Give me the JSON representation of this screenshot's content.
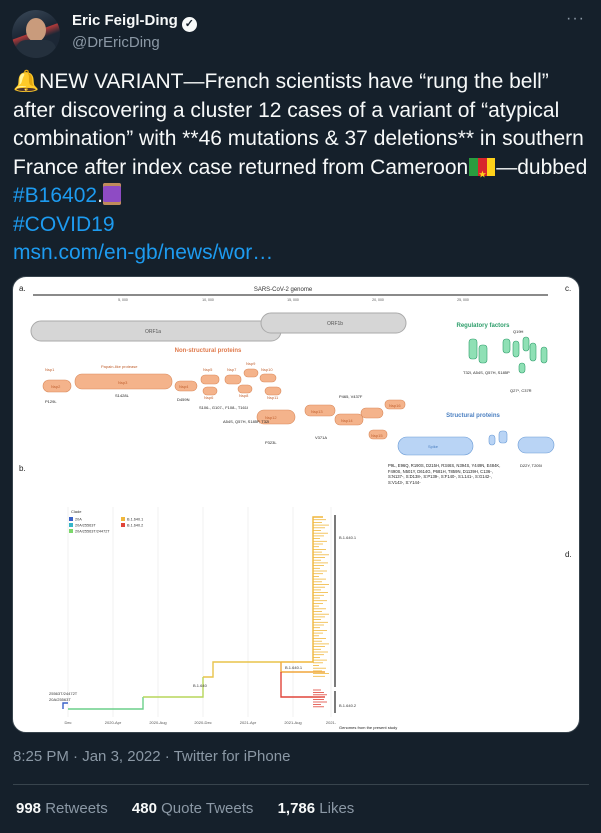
{
  "author": {
    "name": "Eric Feigl-Ding",
    "handle": "@DrEricDing"
  },
  "tweet": {
    "bell": "🔔",
    "text_1": "NEW VARIANT—French scientists have “rung the bell” after discovering a cluster 12 cases of a variant of “atypical combination” with **46 mutations & 37 deletions** in southern France after index case returned from Cameroon",
    "text_2": "—dubbed ",
    "hashtag_1": "#B16402",
    "text_3": ".",
    "hashtag_2": "#COVID19",
    "link": "msn.com/en-gb/news/wor…"
  },
  "figure": {
    "panel_a": "a.",
    "panel_b": "b.",
    "panel_c": "c.",
    "panel_d": "d.",
    "genome_title": "SARS-CoV-2 genome",
    "scale": [
      "5, 000",
      "10, 000",
      "15, 000",
      "20, 000",
      "25, 000"
    ],
    "orf1a": "ORF1a",
    "orf1b": "ORF1b",
    "nsp_heading": "Non-structural proteins",
    "reg_heading": "Regulatory factors",
    "struct_heading": "Structural proteins",
    "nsp_labels": [
      "Nsp1",
      "Papain-like protease",
      "Nsp2",
      "Nsp3",
      "Nsp4",
      "Nsp5",
      "Nsp6",
      "Nsp7",
      "Nsp8",
      "Nsp9",
      "Nsp10",
      "Nsp11",
      "Nsp12",
      "Nsp13",
      "Nsp14",
      "Nsp15",
      "Nsp16"
    ],
    "nsp_mut": [
      "P129L",
      "S1428L",
      "D459N",
      "S106-, G107-, F108-, T161I",
      "A54S, Q57H, S185P, T32I",
      "P323L",
      "V371A",
      "P465, V437F"
    ],
    "reg_mut": [
      "Q19H",
      "T32I, A54S, Q57H, S185P",
      "Q27*, C37R"
    ],
    "spike": "Spike",
    "spike_mut": "P9L, E96Q, R190S, D215H, R346S, N394S, Y449N, E484K, F490S, N501Y, D614G, P681H, T859N, D1139H, C136-, S:N137-, S:D138-, S:P139-, S:F140-, S:L141-, S:G142-, S:V143-, S:Y144-",
    "n_mut": "D22Y, T205I",
    "legend_title": "Clade",
    "legend": [
      "20A",
      "20A/25563T",
      "20A/25563T/24472T",
      "B.1.640.1",
      "B.1.640.2"
    ],
    "clade_labels": [
      "B.1.640.1",
      "B.1.640.2",
      "B.1.640.1",
      "B.1.640"
    ],
    "root_labels": [
      "25563T/24472T",
      "20A/25563T"
    ],
    "x_ticks": [
      "Dec",
      "2020-Apr",
      "2020-Aug",
      "2020-Dec",
      "2021-Apr",
      "2021-Aug",
      "2021-"
    ],
    "caption": "Genomes from the present study"
  },
  "meta": {
    "time": "8:25 PM",
    "date": "Jan 3, 2022",
    "source": "Twitter for iPhone",
    "sep": " · "
  },
  "stats": [
    {
      "count": "998",
      "label": "Retweets"
    },
    {
      "count": "480",
      "label": "Quote Tweets"
    },
    {
      "count": "1,786",
      "label": "Likes"
    }
  ],
  "colors": {
    "background": "#15202b",
    "link": "#1d9bf0",
    "muted": "#8b98a5",
    "nsp": "#f4b38b",
    "reg": "#5fcf9a",
    "struct": "#a9c8f0"
  },
  "icons": [
    "verified-badge-icon",
    "more-dots-icon",
    "bell-emoji-icon",
    "cameroon-flag-icon",
    "thread-spool-emoji-icon"
  ]
}
